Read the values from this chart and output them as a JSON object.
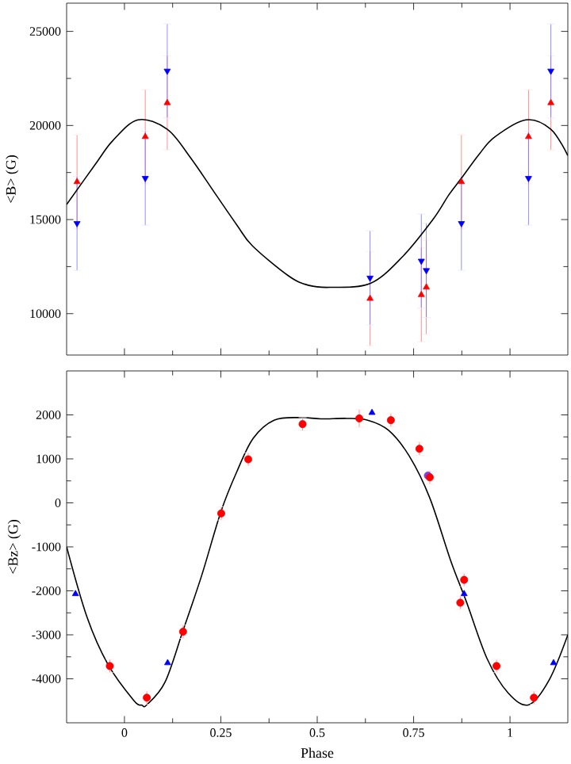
{
  "chart_data": [
    {
      "type": "scatter",
      "ylabel": "<B> (G)",
      "xlim": [
        -0.15,
        1.15
      ],
      "ylim": [
        7800,
        26500
      ],
      "xticks": [
        0,
        0.25,
        0.5,
        0.75,
        1
      ],
      "yticks": [
        10000,
        15000,
        20000,
        25000
      ],
      "tick_labels": "y",
      "series": [
        {
          "color": "#ff0000",
          "marker": "triangle",
          "x": [
            -0.123,
            0.054,
            0.111,
            0.637,
            0.77,
            0.783,
            0.874,
            1.048,
            1.106
          ],
          "values": [
            17000,
            19400,
            21200,
            10800,
            11000,
            11400,
            17000,
            19400,
            21200
          ],
          "errors": [
            2500,
            2500,
            2500,
            2500,
            2500,
            2500,
            2500,
            2500,
            2500
          ]
        },
        {
          "color": "#0000ff",
          "marker": "triangle-down",
          "x": [
            -0.123,
            0.054,
            0.111,
            0.637,
            0.77,
            0.783,
            0.874,
            1.048,
            1.106
          ],
          "values": [
            14800,
            17200,
            22900,
            11900,
            12800,
            12300,
            14800,
            17200,
            22900
          ],
          "errors": [
            2500,
            2500,
            2500,
            2500,
            2500,
            2500,
            2500,
            2500,
            2500
          ]
        },
        {
          "type": "line",
          "color": "#000000",
          "marker": "none",
          "x": [
            -0.15,
            -0.07,
            -0.03,
            0.035,
            0.111,
            0.171,
            0.238,
            0.292,
            0.332,
            0.426,
            0.479,
            0.533,
            0.637,
            0.72,
            0.8,
            0.841,
            0.874,
            0.921,
            0.961,
            1.041,
            1.106,
            1.15
          ],
          "values": [
            15800,
            18100,
            19200,
            20300,
            19800,
            18300,
            16300,
            14700,
            13600,
            12000,
            11500,
            11400,
            11600,
            13000,
            15000,
            16300,
            17200,
            18500,
            19400,
            20300,
            19800,
            18400
          ]
        }
      ]
    },
    {
      "type": "scatter",
      "xlabel": "Phase",
      "ylabel": "<Bz> (G)",
      "xlim": [
        -0.15,
        1.15
      ],
      "ylim": [
        -5000,
        3000
      ],
      "xticks": [
        0,
        0.25,
        0.5,
        0.75,
        1
      ],
      "yticks": [
        -4000,
        -3000,
        -2000,
        -1000,
        0,
        1000,
        2000
      ],
      "series": [
        {
          "type": "line",
          "color": "#000000",
          "marker": "none",
          "x": [
            -0.15,
            -0.097,
            -0.043,
            0.024,
            0.045,
            0.058,
            0.105,
            0.152,
            0.2,
            0.251,
            0.294,
            0.334,
            0.388,
            0.456,
            0.509,
            0.577,
            0.631,
            0.685,
            0.739,
            0.792,
            0.846,
            0.887,
            0.941,
            0.995,
            1.049,
            1.102,
            1.15
          ],
          "values": [
            -1000,
            -2600,
            -3670,
            -4490,
            -4600,
            -4590,
            -4080,
            -2900,
            -1660,
            -180,
            760,
            1470,
            1880,
            1940,
            1910,
            1920,
            1880,
            1650,
            1060,
            110,
            -1310,
            -2250,
            -3550,
            -4320,
            -4590,
            -4020,
            -3000
          ]
        },
        {
          "color": "#8040e0",
          "marker": "circle",
          "x": [
            0.787
          ],
          "values": [
            620
          ]
        },
        {
          "color": "#ff0000",
          "marker": "circle",
          "x": [
            -0.038,
            0.058,
            0.152,
            0.251,
            0.321,
            0.462,
            0.609,
            0.691,
            0.765,
            0.792,
            0.871,
            0.881,
            0.965,
            1.062
          ],
          "values": [
            -3710,
            -4430,
            -2930,
            -240,
            990,
            1790,
            1920,
            1880,
            1230,
            580,
            -2270,
            -1750,
            -3710,
            -4430
          ],
          "errors": [
            150,
            150,
            150,
            150,
            150,
            150,
            200,
            150,
            150,
            150,
            150,
            150,
            150,
            150
          ]
        },
        {
          "color": "#0000ff",
          "marker": "triangle",
          "x": [
            -0.127,
            0.112,
            0.642,
            0.881,
            1.113
          ],
          "values": [
            -2070,
            -3640,
            2050,
            -2070,
            -3640
          ]
        }
      ]
    }
  ]
}
